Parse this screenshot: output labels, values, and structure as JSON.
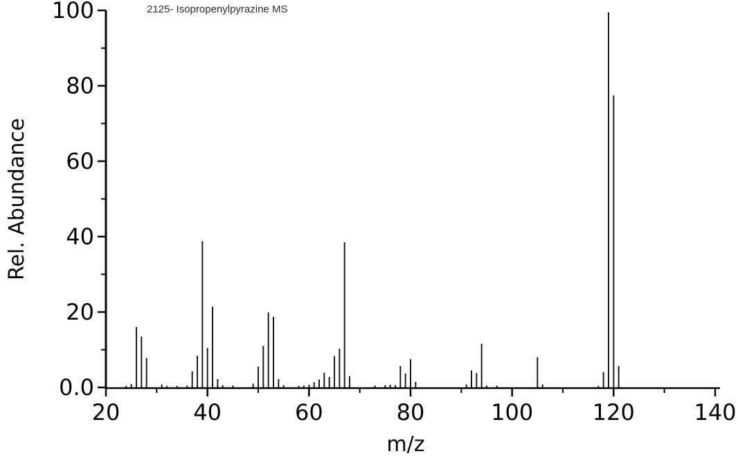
{
  "title": "2125- Isopropenylpyrazine MS",
  "chart_data": {
    "type": "bar",
    "subtype": "mass-spectrum",
    "title": "2125- Isopropenylpyrazine MS",
    "xlabel": "m/z",
    "ylabel": "Rel. Abundance",
    "xlim": [
      20,
      140
    ],
    "ylim": [
      0,
      100
    ],
    "grid": false,
    "legend": null,
    "line_color": "#1a1a1a",
    "axis_color": "#000000",
    "background_color": "#ffffff",
    "x_major_ticks": [
      20,
      40,
      60,
      80,
      100,
      120,
      140
    ],
    "x_major_tick_labels": [
      "20",
      "40",
      "60",
      "80",
      "100",
      "120",
      "140"
    ],
    "x_minor_ticks": [
      30,
      50,
      70,
      90,
      110,
      130
    ],
    "y_major_ticks": [
      0,
      20,
      40,
      60,
      80,
      100
    ],
    "y_major_tick_labels": [
      "0.0",
      "20",
      "40",
      "60",
      "80",
      "100"
    ],
    "y_minor_ticks": [
      10,
      30,
      50,
      70,
      90
    ],
    "peaks": [
      {
        "mz": 24,
        "intensity": 0.4
      },
      {
        "mz": 25,
        "intensity": 0.9
      },
      {
        "mz": 26,
        "intensity": 16.0
      },
      {
        "mz": 27,
        "intensity": 13.5
      },
      {
        "mz": 28,
        "intensity": 7.8
      },
      {
        "mz": 31,
        "intensity": 0.8
      },
      {
        "mz": 32,
        "intensity": 0.4
      },
      {
        "mz": 34,
        "intensity": 0.4
      },
      {
        "mz": 36,
        "intensity": 0.5
      },
      {
        "mz": 37,
        "intensity": 4.3
      },
      {
        "mz": 38,
        "intensity": 8.4
      },
      {
        "mz": 39,
        "intensity": 38.8
      },
      {
        "mz": 40,
        "intensity": 10.5
      },
      {
        "mz": 41,
        "intensity": 21.4
      },
      {
        "mz": 42,
        "intensity": 2.2
      },
      {
        "mz": 43,
        "intensity": 0.6
      },
      {
        "mz": 45,
        "intensity": 0.5
      },
      {
        "mz": 49,
        "intensity": 1.0
      },
      {
        "mz": 50,
        "intensity": 5.5
      },
      {
        "mz": 51,
        "intensity": 11.0
      },
      {
        "mz": 52,
        "intensity": 19.9
      },
      {
        "mz": 53,
        "intensity": 18.7
      },
      {
        "mz": 54,
        "intensity": 2.2
      },
      {
        "mz": 55,
        "intensity": 0.6
      },
      {
        "mz": 58,
        "intensity": 0.4
      },
      {
        "mz": 59,
        "intensity": 0.5
      },
      {
        "mz": 60,
        "intensity": 0.7
      },
      {
        "mz": 61,
        "intensity": 1.4
      },
      {
        "mz": 62,
        "intensity": 2.1
      },
      {
        "mz": 63,
        "intensity": 3.9
      },
      {
        "mz": 64,
        "intensity": 2.8
      },
      {
        "mz": 65,
        "intensity": 8.3
      },
      {
        "mz": 66,
        "intensity": 10.3
      },
      {
        "mz": 67,
        "intensity": 38.5
      },
      {
        "mz": 68,
        "intensity": 3.0
      },
      {
        "mz": 73,
        "intensity": 0.5
      },
      {
        "mz": 75,
        "intensity": 0.6
      },
      {
        "mz": 76,
        "intensity": 0.7
      },
      {
        "mz": 77,
        "intensity": 0.6
      },
      {
        "mz": 78,
        "intensity": 5.7
      },
      {
        "mz": 79,
        "intensity": 3.7
      },
      {
        "mz": 80,
        "intensity": 7.5
      },
      {
        "mz": 81,
        "intensity": 1.5
      },
      {
        "mz": 91,
        "intensity": 0.8
      },
      {
        "mz": 92,
        "intensity": 4.5
      },
      {
        "mz": 93,
        "intensity": 3.8
      },
      {
        "mz": 94,
        "intensity": 11.6
      },
      {
        "mz": 95,
        "intensity": 0.5
      },
      {
        "mz": 97,
        "intensity": 0.5
      },
      {
        "mz": 105,
        "intensity": 8.0
      },
      {
        "mz": 106,
        "intensity": 0.8
      },
      {
        "mz": 117,
        "intensity": 0.4
      },
      {
        "mz": 118,
        "intensity": 4.1
      },
      {
        "mz": 119,
        "intensity": 99.5
      },
      {
        "mz": 120,
        "intensity": 77.4
      },
      {
        "mz": 121,
        "intensity": 5.7
      }
    ]
  }
}
